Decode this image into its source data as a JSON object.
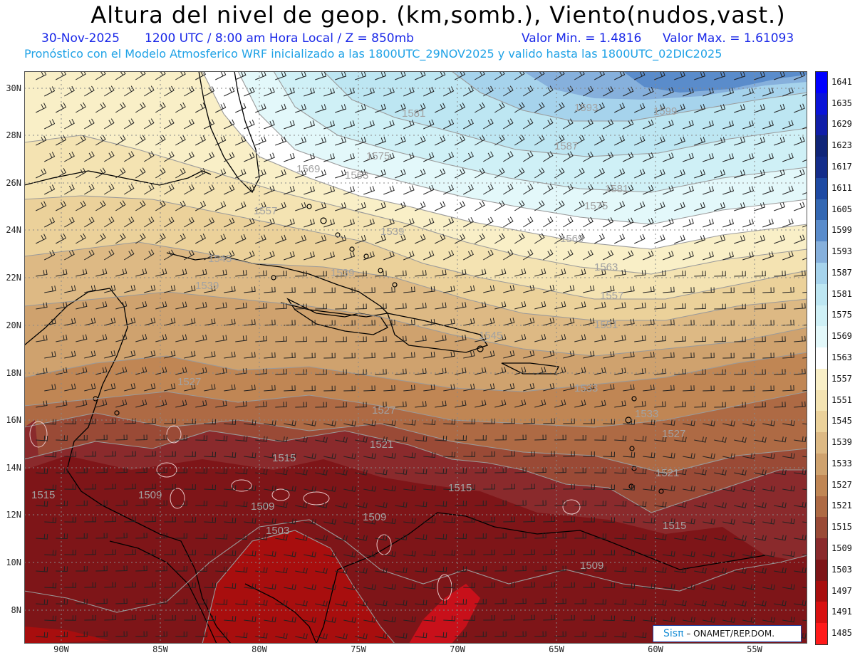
{
  "title": "Altura del nivel de geop. (km,somb.), Viento(nudos,vast.)",
  "subtitle": {
    "date": "30-Nov-2025",
    "time": "1200 UTC / 8:00 am Hora Local / Z = 850mb",
    "min": "Valor Min. = 1.4816",
    "max": "Valor Max. = 1.61093"
  },
  "forecast_line": "Pronóstico con el Modelo Atmosferico WRF inicializado a las 1800UTC_29NOV2025 y valido hasta las  1800UTC_02DIC2025",
  "lat_labels": [
    "30N",
    "28N",
    "26N",
    "24N",
    "22N",
    "20N",
    "18N",
    "16N",
    "14N",
    "12N",
    "10N",
    "8N"
  ],
  "lon_labels": [
    "90W",
    "85W",
    "80W",
    "75W",
    "70W",
    "65W",
    "60W",
    "55W"
  ],
  "colorbar": {
    "levels": [
      "1641",
      "1635",
      "1629",
      "1623",
      "1617",
      "1611",
      "1605",
      "1599",
      "1593",
      "1587",
      "1581",
      "1575",
      "1569",
      "1563",
      "1557",
      "1551",
      "1545",
      "1539",
      "1533",
      "1527",
      "1521",
      "1515",
      "1509",
      "1503",
      "1497",
      "1491",
      "1485"
    ],
    "colors": [
      "#0000ff",
      "#0a14d8",
      "#101ea8",
      "#102578",
      "#142d8a",
      "#1e4aa3",
      "#3468b3",
      "#5a8ccb",
      "#86b0dc",
      "#a6d3ec",
      "#bde6f2",
      "#cff0f6",
      "#e3f8fa",
      "#ffffff",
      "#f9efc7",
      "#f4e3b2",
      "#ebd19a",
      "#ddb984",
      "#cfa26e",
      "#c08654",
      "#ae6a44",
      "#9a4a36",
      "#8a2a2c",
      "#7e1518",
      "#a80e0e",
      "#d81010",
      "#ff1a1a"
    ]
  },
  "contour_labels": [
    {
      "text": "1581"
    },
    {
      "text": "1593"
    },
    {
      "text": "1599"
    },
    {
      "text": "1587"
    },
    {
      "text": "1575"
    },
    {
      "text": "1581"
    },
    {
      "text": "1575"
    },
    {
      "text": "1569"
    },
    {
      "text": "1563"
    },
    {
      "text": "1569"
    },
    {
      "text": "1563"
    },
    {
      "text": "1557"
    },
    {
      "text": "1557"
    },
    {
      "text": "1551"
    },
    {
      "text": "1545"
    },
    {
      "text": "1545"
    },
    {
      "text": "1539"
    },
    {
      "text": "1539"
    },
    {
      "text": "1533"
    },
    {
      "text": "1527"
    },
    {
      "text": "1533"
    },
    {
      "text": "1527"
    },
    {
      "text": "1521"
    },
    {
      "text": "1527"
    },
    {
      "text": "1521"
    },
    {
      "text": "1515"
    },
    {
      "text": "1515"
    },
    {
      "text": "1515"
    },
    {
      "text": "1515"
    },
    {
      "text": "1509"
    },
    {
      "text": "1509"
    },
    {
      "text": "1509"
    },
    {
      "text": "1503"
    },
    {
      "text": "1509"
    },
    {
      "text": "1539"
    }
  ],
  "credit": {
    "logo": "Sisπ",
    "text": "– ONAMET/REP.DOM."
  }
}
